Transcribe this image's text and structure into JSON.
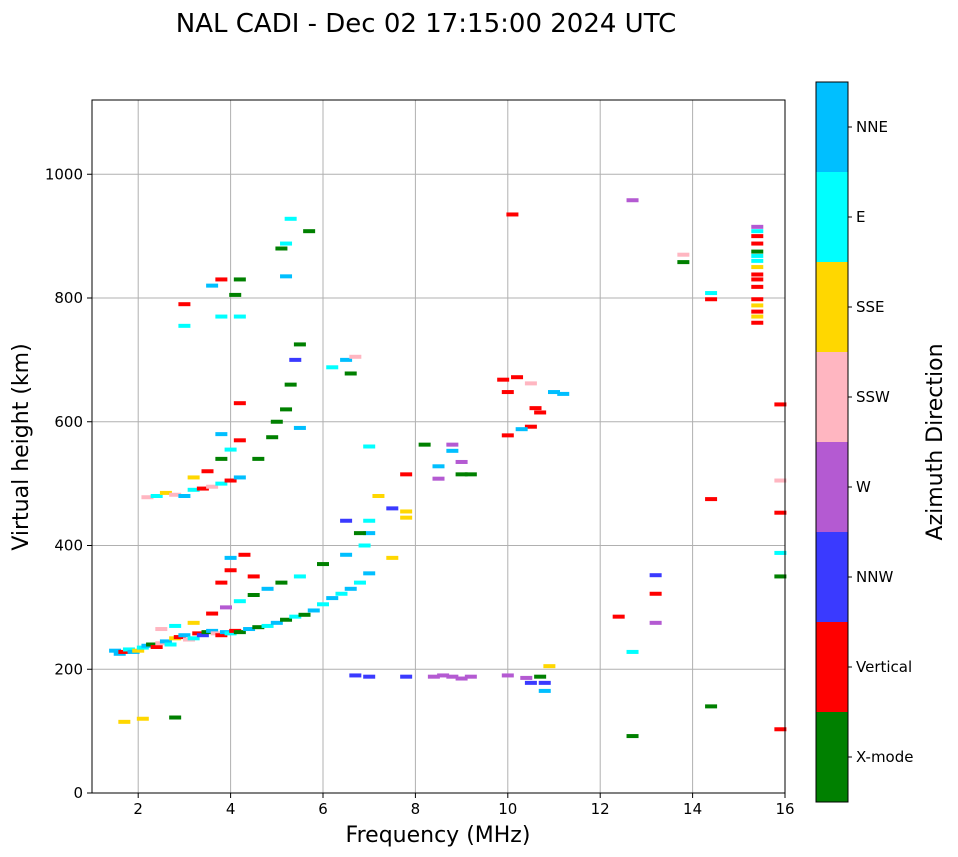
{
  "chart_data": {
    "type": "scatter",
    "title": "NAL CADI - Dec 02 17:15:00 2024 UTC",
    "xlabel": "Frequency (MHz)",
    "ylabel": "Virtual height (km)",
    "xlim": [
      1,
      16
    ],
    "ylim": [
      0,
      1120
    ],
    "xticks": [
      2,
      4,
      6,
      8,
      10,
      12,
      14,
      16
    ],
    "yticks": [
      0,
      200,
      400,
      600,
      800,
      1000
    ],
    "grid": true,
    "colorbar": {
      "label": "Azimuth Direction",
      "categories": [
        {
          "name": "X-mode",
          "color": "#008000"
        },
        {
          "name": "Vertical",
          "color": "#ff0000"
        },
        {
          "name": "NNW",
          "color": "#3a3aff"
        },
        {
          "name": "W",
          "color": "#b45ad2"
        },
        {
          "name": "SSW",
          "color": "#ffb6c1"
        },
        {
          "name": "SSE",
          "color": "#ffd700"
        },
        {
          "name": "E",
          "color": "#00ffff"
        },
        {
          "name": "NNE",
          "color": "#00bfff"
        }
      ]
    },
    "points": [
      {
        "f": 1.5,
        "h": 230,
        "c": "NNE"
      },
      {
        "f": 1.6,
        "h": 225,
        "c": "NNE"
      },
      {
        "f": 1.7,
        "h": 228,
        "c": "Vertical"
      },
      {
        "f": 1.8,
        "h": 232,
        "c": "E"
      },
      {
        "f": 1.9,
        "h": 228,
        "c": "NNE"
      },
      {
        "f": 2.0,
        "h": 230,
        "c": "SSE"
      },
      {
        "f": 2.1,
        "h": 235,
        "c": "E"
      },
      {
        "f": 2.2,
        "h": 238,
        "c": "NNE"
      },
      {
        "f": 2.3,
        "h": 240,
        "c": "X-mode"
      },
      {
        "f": 2.4,
        "h": 236,
        "c": "Vertical"
      },
      {
        "f": 2.5,
        "h": 242,
        "c": "SSW"
      },
      {
        "f": 2.6,
        "h": 245,
        "c": "NNE"
      },
      {
        "f": 2.7,
        "h": 240,
        "c": "E"
      },
      {
        "f": 2.8,
        "h": 250,
        "c": "SSE"
      },
      {
        "f": 2.9,
        "h": 252,
        "c": "Vertical"
      },
      {
        "f": 3.0,
        "h": 255,
        "c": "NNE"
      },
      {
        "f": 3.1,
        "h": 248,
        "c": "SSW"
      },
      {
        "f": 3.2,
        "h": 250,
        "c": "E"
      },
      {
        "f": 3.3,
        "h": 258,
        "c": "Vertical"
      },
      {
        "f": 3.4,
        "h": 255,
        "c": "NNW"
      },
      {
        "f": 3.5,
        "h": 260,
        "c": "X-mode"
      },
      {
        "f": 3.6,
        "h": 262,
        "c": "NNE"
      },
      {
        "f": 3.7,
        "h": 258,
        "c": "SSW"
      },
      {
        "f": 3.8,
        "h": 255,
        "c": "Vertical"
      },
      {
        "f": 3.9,
        "h": 260,
        "c": "NNE"
      },
      {
        "f": 4.0,
        "h": 258,
        "c": "E"
      },
      {
        "f": 4.1,
        "h": 262,
        "c": "Vertical"
      },
      {
        "f": 4.2,
        "h": 260,
        "c": "X-mode"
      },
      {
        "f": 4.4,
        "h": 265,
        "c": "NNE"
      },
      {
        "f": 4.6,
        "h": 268,
        "c": "X-mode"
      },
      {
        "f": 4.8,
        "h": 270,
        "c": "E"
      },
      {
        "f": 5.0,
        "h": 275,
        "c": "NNE"
      },
      {
        "f": 5.2,
        "h": 280,
        "c": "X-mode"
      },
      {
        "f": 5.4,
        "h": 285,
        "c": "E"
      },
      {
        "f": 5.6,
        "h": 288,
        "c": "X-mode"
      },
      {
        "f": 5.8,
        "h": 295,
        "c": "NNE"
      },
      {
        "f": 6.0,
        "h": 305,
        "c": "E"
      },
      {
        "f": 6.2,
        "h": 315,
        "c": "NNE"
      },
      {
        "f": 6.4,
        "h": 322,
        "c": "E"
      },
      {
        "f": 6.6,
        "h": 330,
        "c": "NNE"
      },
      {
        "f": 6.8,
        "h": 340,
        "c": "E"
      },
      {
        "f": 7.0,
        "h": 355,
        "c": "NNE"
      },
      {
        "f": 2.5,
        "h": 265,
        "c": "SSW"
      },
      {
        "f": 2.8,
        "h": 270,
        "c": "E"
      },
      {
        "f": 3.2,
        "h": 275,
        "c": "SSE"
      },
      {
        "f": 3.6,
        "h": 290,
        "c": "Vertical"
      },
      {
        "f": 3.9,
        "h": 300,
        "c": "W"
      },
      {
        "f": 4.2,
        "h": 310,
        "c": "E"
      },
      {
        "f": 4.5,
        "h": 320,
        "c": "X-mode"
      },
      {
        "f": 4.8,
        "h": 330,
        "c": "NNE"
      },
      {
        "f": 5.1,
        "h": 340,
        "c": "X-mode"
      },
      {
        "f": 5.5,
        "h": 350,
        "c": "E"
      },
      {
        "f": 6.0,
        "h": 370,
        "c": "X-mode"
      },
      {
        "f": 6.5,
        "h": 385,
        "c": "NNE"
      },
      {
        "f": 6.9,
        "h": 400,
        "c": "E"
      },
      {
        "f": 7.0,
        "h": 420,
        "c": "NNE"
      },
      {
        "f": 7.0,
        "h": 440,
        "c": "E"
      },
      {
        "f": 7.5,
        "h": 460,
        "c": "NNW"
      },
      {
        "f": 7.8,
        "h": 455,
        "c": "SSE"
      },
      {
        "f": 7.8,
        "h": 445,
        "c": "SSE"
      },
      {
        "f": 7.5,
        "h": 380,
        "c": "SSE"
      },
      {
        "f": 4.0,
        "h": 360,
        "c": "Vertical"
      },
      {
        "f": 4.3,
        "h": 385,
        "c": "Vertical"
      },
      {
        "f": 4.0,
        "h": 380,
        "c": "NNE"
      },
      {
        "f": 3.8,
        "h": 340,
        "c": "Vertical"
      },
      {
        "f": 4.5,
        "h": 350,
        "c": "Vertical"
      },
      {
        "f": 2.2,
        "h": 478,
        "c": "SSW"
      },
      {
        "f": 2.4,
        "h": 480,
        "c": "E"
      },
      {
        "f": 2.6,
        "h": 485,
        "c": "SSE"
      },
      {
        "f": 2.8,
        "h": 482,
        "c": "SSW"
      },
      {
        "f": 3.0,
        "h": 480,
        "c": "NNE"
      },
      {
        "f": 3.2,
        "h": 490,
        "c": "E"
      },
      {
        "f": 3.4,
        "h": 492,
        "c": "Vertical"
      },
      {
        "f": 3.6,
        "h": 495,
        "c": "SSW"
      },
      {
        "f": 3.8,
        "h": 500,
        "c": "E"
      },
      {
        "f": 4.0,
        "h": 505,
        "c": "Vertical"
      },
      {
        "f": 4.2,
        "h": 510,
        "c": "NNE"
      },
      {
        "f": 3.2,
        "h": 510,
        "c": "SSE"
      },
      {
        "f": 3.5,
        "h": 520,
        "c": "Vertical"
      },
      {
        "f": 3.8,
        "h": 540,
        "c": "X-mode"
      },
      {
        "f": 4.0,
        "h": 555,
        "c": "E"
      },
      {
        "f": 4.2,
        "h": 570,
        "c": "Vertical"
      },
      {
        "f": 3.8,
        "h": 580,
        "c": "NNE"
      },
      {
        "f": 4.2,
        "h": 630,
        "c": "Vertical"
      },
      {
        "f": 4.6,
        "h": 540,
        "c": "X-mode"
      },
      {
        "f": 4.9,
        "h": 575,
        "c": "X-mode"
      },
      {
        "f": 5.2,
        "h": 620,
        "c": "X-mode"
      },
      {
        "f": 5.3,
        "h": 660,
        "c": "X-mode"
      },
      {
        "f": 5.5,
        "h": 725,
        "c": "X-mode"
      },
      {
        "f": 5.4,
        "h": 700,
        "c": "NNW"
      },
      {
        "f": 5.0,
        "h": 600,
        "c": "X-mode"
      },
      {
        "f": 5.5,
        "h": 590,
        "c": "NNE"
      },
      {
        "f": 2.1,
        "h": 120,
        "c": "SSE"
      },
      {
        "f": 1.7,
        "h": 115,
        "c": "SSE"
      },
      {
        "f": 2.8,
        "h": 122,
        "c": "X-mode"
      },
      {
        "f": 3.0,
        "h": 790,
        "c": "Vertical"
      },
      {
        "f": 3.0,
        "h": 755,
        "c": "E"
      },
      {
        "f": 3.6,
        "h": 820,
        "c": "NNE"
      },
      {
        "f": 3.8,
        "h": 830,
        "c": "Vertical"
      },
      {
        "f": 3.8,
        "h": 770,
        "c": "E"
      },
      {
        "f": 4.1,
        "h": 805,
        "c": "X-mode"
      },
      {
        "f": 4.2,
        "h": 830,
        "c": "X-mode"
      },
      {
        "f": 4.2,
        "h": 770,
        "c": "E"
      },
      {
        "f": 5.2,
        "h": 888,
        "c": "E"
      },
      {
        "f": 5.1,
        "h": 880,
        "c": "X-mode"
      },
      {
        "f": 5.3,
        "h": 928,
        "c": "E"
      },
      {
        "f": 5.7,
        "h": 908,
        "c": "X-mode"
      },
      {
        "f": 5.2,
        "h": 835,
        "c": "NNE"
      },
      {
        "f": 6.2,
        "h": 688,
        "c": "E"
      },
      {
        "f": 6.5,
        "h": 700,
        "c": "NNE"
      },
      {
        "f": 6.7,
        "h": 705,
        "c": "SSW"
      },
      {
        "f": 6.6,
        "h": 678,
        "c": "X-mode"
      },
      {
        "f": 6.5,
        "h": 440,
        "c": "NNW"
      },
      {
        "f": 6.8,
        "h": 420,
        "c": "X-mode"
      },
      {
        "f": 7.0,
        "h": 560,
        "c": "E"
      },
      {
        "f": 7.2,
        "h": 480,
        "c": "SSE"
      },
      {
        "f": 7.8,
        "h": 515,
        "c": "Vertical"
      },
      {
        "f": 6.7,
        "h": 190,
        "c": "NNW"
      },
      {
        "f": 7.0,
        "h": 188,
        "c": "NNW"
      },
      {
        "f": 7.8,
        "h": 188,
        "c": "NNW"
      },
      {
        "f": 8.4,
        "h": 188,
        "c": "W"
      },
      {
        "f": 8.6,
        "h": 190,
        "c": "W"
      },
      {
        "f": 8.8,
        "h": 188,
        "c": "W"
      },
      {
        "f": 9.0,
        "h": 185,
        "c": "W"
      },
      {
        "f": 9.2,
        "h": 188,
        "c": "W"
      },
      {
        "f": 8.2,
        "h": 563,
        "c": "X-mode"
      },
      {
        "f": 8.8,
        "h": 563,
        "c": "W"
      },
      {
        "f": 8.8,
        "h": 553,
        "c": "NNE"
      },
      {
        "f": 9.0,
        "h": 535,
        "c": "W"
      },
      {
        "f": 8.5,
        "h": 528,
        "c": "NNE"
      },
      {
        "f": 8.5,
        "h": 508,
        "c": "W"
      },
      {
        "f": 9.0,
        "h": 515,
        "c": "X-mode"
      },
      {
        "f": 9.2,
        "h": 515,
        "c": "X-mode"
      },
      {
        "f": 10.1,
        "h": 935,
        "c": "Vertical"
      },
      {
        "f": 9.9,
        "h": 668,
        "c": "Vertical"
      },
      {
        "f": 10.2,
        "h": 672,
        "c": "Vertical"
      },
      {
        "f": 10.5,
        "h": 662,
        "c": "SSW"
      },
      {
        "f": 10.0,
        "h": 648,
        "c": "Vertical"
      },
      {
        "f": 10.6,
        "h": 622,
        "c": "Vertical"
      },
      {
        "f": 10.7,
        "h": 615,
        "c": "Vertical"
      },
      {
        "f": 10.5,
        "h": 592,
        "c": "Vertical"
      },
      {
        "f": 10.3,
        "h": 588,
        "c": "NNE"
      },
      {
        "f": 10.0,
        "h": 578,
        "c": "Vertical"
      },
      {
        "f": 11.0,
        "h": 648,
        "c": "NNE"
      },
      {
        "f": 11.2,
        "h": 645,
        "c": "NNE"
      },
      {
        "f": 10.0,
        "h": 190,
        "c": "W"
      },
      {
        "f": 10.4,
        "h": 186,
        "c": "W"
      },
      {
        "f": 10.5,
        "h": 178,
        "c": "NNW"
      },
      {
        "f": 10.7,
        "h": 188,
        "c": "X-mode"
      },
      {
        "f": 10.8,
        "h": 178,
        "c": "NNW"
      },
      {
        "f": 10.8,
        "h": 165,
        "c": "NNE"
      },
      {
        "f": 10.9,
        "h": 205,
        "c": "SSE"
      },
      {
        "f": 12.4,
        "h": 285,
        "c": "Vertical"
      },
      {
        "f": 12.7,
        "h": 228,
        "c": "E"
      },
      {
        "f": 12.7,
        "h": 92,
        "c": "X-mode"
      },
      {
        "f": 12.7,
        "h": 958,
        "c": "W"
      },
      {
        "f": 13.2,
        "h": 352,
        "c": "NNW"
      },
      {
        "f": 13.2,
        "h": 322,
        "c": "Vertical"
      },
      {
        "f": 13.2,
        "h": 275,
        "c": "W"
      },
      {
        "f": 13.8,
        "h": 870,
        "c": "SSW"
      },
      {
        "f": 13.8,
        "h": 858,
        "c": "X-mode"
      },
      {
        "f": 14.4,
        "h": 808,
        "c": "E"
      },
      {
        "f": 14.4,
        "h": 798,
        "c": "Vertical"
      },
      {
        "f": 14.4,
        "h": 475,
        "c": "Vertical"
      },
      {
        "f": 14.4,
        "h": 140,
        "c": "X-mode"
      },
      {
        "f": 15.4,
        "h": 915,
        "c": "W"
      },
      {
        "f": 15.4,
        "h": 908,
        "c": "E"
      },
      {
        "f": 15.4,
        "h": 900,
        "c": "Vertical"
      },
      {
        "f": 15.4,
        "h": 888,
        "c": "Vertical"
      },
      {
        "f": 15.4,
        "h": 875,
        "c": "X-mode"
      },
      {
        "f": 15.4,
        "h": 868,
        "c": "E"
      },
      {
        "f": 15.4,
        "h": 860,
        "c": "E"
      },
      {
        "f": 15.4,
        "h": 850,
        "c": "SSE"
      },
      {
        "f": 15.4,
        "h": 838,
        "c": "Vertical"
      },
      {
        "f": 15.4,
        "h": 830,
        "c": "Vertical"
      },
      {
        "f": 15.4,
        "h": 818,
        "c": "Vertical"
      },
      {
        "f": 15.4,
        "h": 798,
        "c": "Vertical"
      },
      {
        "f": 15.4,
        "h": 788,
        "c": "SSE"
      },
      {
        "f": 15.4,
        "h": 778,
        "c": "Vertical"
      },
      {
        "f": 15.4,
        "h": 770,
        "c": "SSE"
      },
      {
        "f": 15.4,
        "h": 760,
        "c": "Vertical"
      },
      {
        "f": 15.9,
        "h": 628,
        "c": "Vertical"
      },
      {
        "f": 15.9,
        "h": 505,
        "c": "SSW"
      },
      {
        "f": 15.9,
        "h": 453,
        "c": "Vertical"
      },
      {
        "f": 15.9,
        "h": 388,
        "c": "E"
      },
      {
        "f": 15.9,
        "h": 350,
        "c": "X-mode"
      },
      {
        "f": 15.9,
        "h": 103,
        "c": "Vertical"
      }
    ]
  }
}
